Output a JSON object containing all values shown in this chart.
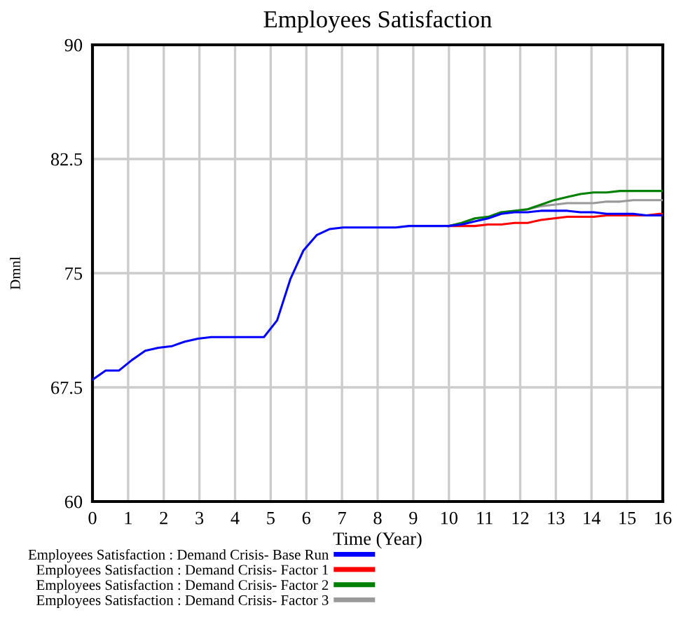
{
  "chart_data": {
    "type": "line",
    "title": "Employees Satisfaction",
    "xlabel": "Time (Year)",
    "ylabel": "Dmnl",
    "x": [
      0,
      0.37,
      0.74,
      1.11,
      1.48,
      1.85,
      2.22,
      2.59,
      2.96,
      3.33,
      3.7,
      4.07,
      4.44,
      4.81,
      5.18,
      5.55,
      5.92,
      6.29,
      6.66,
      7.03,
      7.4,
      7.77,
      8.14,
      8.51,
      8.88,
      9.25,
      9.62,
      9.99,
      10.36,
      10.73,
      11.1,
      11.47,
      11.84,
      12.21,
      12.58,
      12.95,
      13.32,
      13.69,
      14.06,
      14.43,
      14.8,
      15.17,
      15.54,
      15.91,
      16
    ],
    "xlim": [
      0,
      16
    ],
    "xticks": [
      0,
      1,
      2,
      3,
      4,
      5,
      6,
      7,
      8,
      9,
      10,
      11,
      12,
      13,
      14,
      15,
      16
    ],
    "ylim": [
      60,
      90
    ],
    "yticks": [
      60,
      67.5,
      75,
      82.5,
      90
    ],
    "grid": true,
    "legend": "bottom",
    "line_style": "solid",
    "series": [
      {
        "name": "Employees Satisfaction : Demand Crisis- Base Run",
        "color": "#0000ff",
        "values": [
          68.0,
          68.6,
          68.6,
          69.3,
          69.9,
          70.1,
          70.2,
          70.5,
          70.7,
          70.8,
          70.8,
          70.8,
          70.8,
          70.8,
          71.9,
          74.6,
          76.5,
          77.5,
          77.9,
          78.0,
          78.0,
          78.0,
          78.0,
          78.0,
          78.1,
          78.1,
          78.1,
          78.1,
          78.2,
          78.4,
          78.6,
          78.9,
          79.0,
          79.0,
          79.1,
          79.1,
          79.1,
          79.0,
          79.0,
          78.9,
          78.9,
          78.9,
          78.8,
          78.8,
          78.8
        ]
      },
      {
        "name": "Employees Satisfaction : Demand Crisis- Factor 1",
        "color": "#ff0000",
        "values": [
          null,
          null,
          null,
          null,
          null,
          null,
          null,
          null,
          null,
          null,
          null,
          null,
          null,
          null,
          null,
          null,
          null,
          null,
          null,
          null,
          null,
          null,
          null,
          null,
          null,
          null,
          null,
          78.1,
          78.1,
          78.1,
          78.2,
          78.2,
          78.3,
          78.3,
          78.5,
          78.6,
          78.7,
          78.7,
          78.7,
          78.8,
          78.8,
          78.8,
          78.8,
          78.9,
          78.9
        ]
      },
      {
        "name": "Employees Satisfaction : Demand Crisis- Factor 2",
        "color": "#008000",
        "values": [
          null,
          null,
          null,
          null,
          null,
          null,
          null,
          null,
          null,
          null,
          null,
          null,
          null,
          null,
          null,
          null,
          null,
          null,
          null,
          null,
          null,
          null,
          null,
          null,
          null,
          null,
          null,
          78.1,
          78.3,
          78.6,
          78.7,
          79.0,
          79.1,
          79.2,
          79.5,
          79.8,
          80.0,
          80.2,
          80.3,
          80.3,
          80.4,
          80.4,
          80.4,
          80.4,
          80.4
        ]
      },
      {
        "name": "Employees Satisfaction : Demand Crisis- Factor 3",
        "color": "#999999",
        "values": [
          null,
          null,
          null,
          null,
          null,
          null,
          null,
          null,
          null,
          null,
          null,
          null,
          null,
          null,
          null,
          null,
          null,
          null,
          null,
          null,
          null,
          null,
          null,
          null,
          null,
          null,
          null,
          78.1,
          78.3,
          78.6,
          78.7,
          79.0,
          79.1,
          79.2,
          79.4,
          79.5,
          79.6,
          79.6,
          79.6,
          79.7,
          79.7,
          79.8,
          79.8,
          79.8,
          79.8
        ]
      }
    ]
  }
}
